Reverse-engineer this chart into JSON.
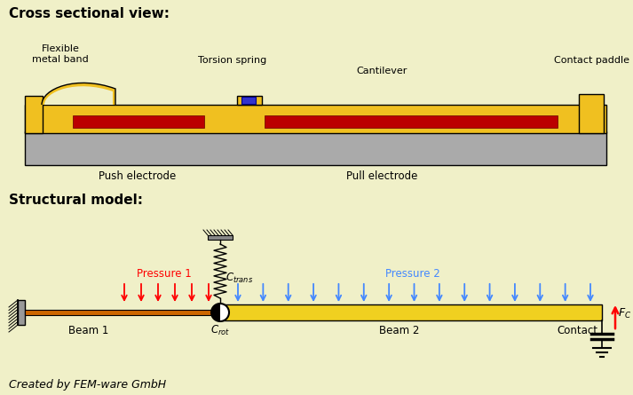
{
  "bg_color": "#f0f0c8",
  "title1": "Cross sectional view:",
  "title2": "Structural model:",
  "label_flexible": "Flexible\nmetal band",
  "label_torsion": "Torsion spring",
  "label_cantilever": "Cantilever",
  "label_contact_paddle": "Contact paddle",
  "label_push": "Push electrode",
  "label_pull": "Pull electrode",
  "label_beam1": "Beam 1",
  "label_beam2": "Beam 2",
  "label_contact": "Contact",
  "label_pressure1": "Pressure 1",
  "label_pressure2": "Pressure 2",
  "label_credit": "Created by FEM-ware GmbH",
  "yellow": "#f0c020",
  "gray": "#aaaaaa",
  "red_electrode": "#bb0000",
  "blue_arrow": "#4488ff",
  "beam_yellow": "#f0d020",
  "orange_beam": "#cc6600"
}
